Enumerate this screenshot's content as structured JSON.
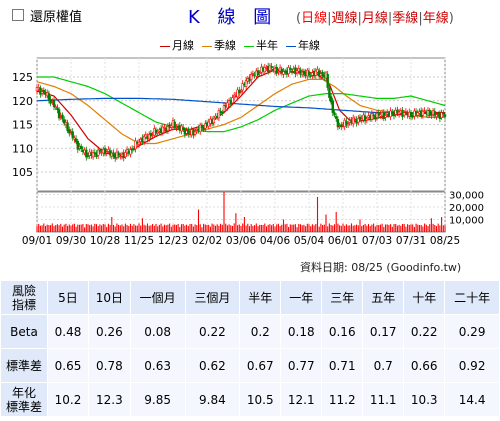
{
  "toolbar": {
    "restore_label": "還原權值",
    "checkbox_checked": false
  },
  "title": "K 線 圖",
  "periods": {
    "open": "(",
    "close": ")",
    "items": [
      "日線",
      "週線",
      "月線",
      "季線",
      "年線"
    ],
    "selected": "日線",
    "separator": "|"
  },
  "source_note": "資料日期: 08/25 (Goodinfo.tw)",
  "colors": {
    "bg": "#ffffff",
    "title": "#0000cc",
    "period_link": "#cc0000",
    "candle_up": "#ff0000",
    "candle_down": "#008000",
    "volume": "#ff0000",
    "table_header": "#dfe9f9",
    "table_cell": "#f4f7fd"
  },
  "chart_data": {
    "type": "candlestick",
    "legend": [
      {
        "name": "月線",
        "color": "#d00000"
      },
      {
        "name": "季線",
        "color": "#e08000"
      },
      {
        "name": "半年",
        "color": "#00cc00"
      },
      {
        "name": "年線",
        "color": "#0050c8"
      }
    ],
    "x_ticks": [
      "09/01",
      "09/30",
      "10/28",
      "11/25",
      "12/23",
      "02/02",
      "03/06",
      "04/06",
      "05/04",
      "06/01",
      "07/03",
      "07/31",
      "08/25"
    ],
    "y_ticks": [
      105,
      110,
      115,
      120,
      125
    ],
    "y_range": [
      101,
      129
    ],
    "volume_ticks": [
      "10,000",
      "20,000",
      "30,000"
    ],
    "volume_range": [
      0,
      32000
    ],
    "x_range": [
      0,
      240
    ],
    "anchors": {
      "close": [
        [
          0,
          122.5
        ],
        [
          5,
          121.5
        ],
        [
          10,
          119
        ],
        [
          15,
          116
        ],
        [
          20,
          113
        ],
        [
          25,
          110
        ],
        [
          30,
          108.5
        ],
        [
          35,
          109
        ],
        [
          40,
          109.5
        ],
        [
          45,
          108.5
        ],
        [
          50,
          108.5
        ],
        [
          55,
          109.5
        ],
        [
          60,
          111.5
        ],
        [
          65,
          112.5
        ],
        [
          70,
          113.5
        ],
        [
          75,
          114
        ],
        [
          80,
          115
        ],
        [
          85,
          114
        ],
        [
          90,
          113
        ],
        [
          95,
          114
        ],
        [
          100,
          115
        ],
        [
          105,
          116.5
        ],
        [
          110,
          118.5
        ],
        [
          115,
          120.5
        ],
        [
          120,
          122.5
        ],
        [
          125,
          125
        ],
        [
          130,
          126
        ],
        [
          135,
          127
        ],
        [
          140,
          126.5
        ],
        [
          145,
          126
        ],
        [
          150,
          126.5
        ],
        [
          155,
          126
        ],
        [
          160,
          125.5
        ],
        [
          165,
          126
        ],
        [
          170,
          125
        ],
        [
          172,
          121
        ],
        [
          175,
          116.5
        ],
        [
          178,
          114.5
        ],
        [
          183,
          115.5
        ],
        [
          188,
          116
        ],
        [
          195,
          116.5
        ],
        [
          200,
          117
        ],
        [
          205,
          117
        ],
        [
          210,
          117.5
        ],
        [
          215,
          117.5
        ],
        [
          220,
          117
        ],
        [
          225,
          117.5
        ],
        [
          230,
          117.5
        ],
        [
          235,
          117
        ],
        [
          240,
          117
        ]
      ],
      "ma_month": [
        [
          0,
          122
        ],
        [
          10,
          121
        ],
        [
          20,
          117
        ],
        [
          30,
          112
        ],
        [
          40,
          109
        ],
        [
          50,
          108.5
        ],
        [
          60,
          110.5
        ],
        [
          70,
          112.5
        ],
        [
          80,
          114
        ],
        [
          90,
          114
        ],
        [
          100,
          115
        ],
        [
          110,
          117.5
        ],
        [
          120,
          121
        ],
        [
          130,
          125
        ],
        [
          140,
          126.5
        ],
        [
          150,
          126
        ],
        [
          160,
          126
        ],
        [
          165,
          125.5
        ],
        [
          172,
          123.5
        ],
        [
          178,
          118
        ],
        [
          185,
          115.5
        ],
        [
          195,
          116
        ],
        [
          210,
          117
        ],
        [
          225,
          117.5
        ],
        [
          240,
          117.5
        ]
      ],
      "ma_quarter": [
        [
          0,
          124
        ],
        [
          10,
          123
        ],
        [
          20,
          121.5
        ],
        [
          30,
          119
        ],
        [
          40,
          116
        ],
        [
          50,
          113
        ],
        [
          60,
          111
        ],
        [
          70,
          111
        ],
        [
          80,
          112
        ],
        [
          90,
          113
        ],
        [
          100,
          114
        ],
        [
          110,
          115
        ],
        [
          120,
          116.5
        ],
        [
          130,
          119
        ],
        [
          140,
          121.5
        ],
        [
          150,
          123.5
        ],
        [
          160,
          124.5
        ],
        [
          168,
          124.5
        ],
        [
          175,
          123
        ],
        [
          182,
          121
        ],
        [
          190,
          119
        ],
        [
          200,
          118
        ],
        [
          210,
          117.5
        ],
        [
          220,
          117
        ],
        [
          230,
          116.5
        ],
        [
          240,
          116.5
        ]
      ],
      "ma_half": [
        [
          0,
          125
        ],
        [
          10,
          125
        ],
        [
          20,
          124
        ],
        [
          30,
          123
        ],
        [
          40,
          121.5
        ],
        [
          50,
          119.5
        ],
        [
          60,
          117.5
        ],
        [
          70,
          115.5
        ],
        [
          80,
          114.5
        ],
        [
          90,
          114
        ],
        [
          100,
          113.5
        ],
        [
          110,
          113.5
        ],
        [
          120,
          114.5
        ],
        [
          130,
          116
        ],
        [
          140,
          118
        ],
        [
          150,
          119.5
        ],
        [
          160,
          121
        ],
        [
          170,
          121.5
        ],
        [
          180,
          121.5
        ],
        [
          190,
          121
        ],
        [
          200,
          120.5
        ],
        [
          210,
          120.5
        ],
        [
          220,
          121
        ],
        [
          230,
          120
        ],
        [
          240,
          119
        ]
      ],
      "ma_year": [
        [
          0,
          120
        ],
        [
          20,
          120.3
        ],
        [
          40,
          120.5
        ],
        [
          60,
          120.5
        ],
        [
          80,
          120.3
        ],
        [
          100,
          119.8
        ],
        [
          120,
          119.3
        ],
        [
          140,
          118.8
        ],
        [
          160,
          118.5
        ],
        [
          180,
          118
        ],
        [
          200,
          117.5
        ],
        [
          220,
          117.4
        ],
        [
          240,
          117.3
        ]
      ]
    },
    "volume_peaks": [
      [
        44,
        12000
      ],
      [
        62,
        11000
      ],
      [
        95,
        18000
      ],
      [
        110,
        32000
      ],
      [
        117,
        15000
      ],
      [
        122,
        12000
      ],
      [
        145,
        10000
      ],
      [
        165,
        28000
      ],
      [
        170,
        14000
      ],
      [
        176,
        16000
      ],
      [
        190,
        10000
      ],
      [
        232,
        11000
      ],
      [
        238,
        12000
      ]
    ]
  },
  "stats_table": {
    "row_header_label": [
      "風險",
      "指標"
    ],
    "columns": [
      "5日",
      "10日",
      "一個月",
      "三個月",
      "半年",
      "一年",
      "三年",
      "五年",
      "十年",
      "二十年"
    ],
    "rows": [
      {
        "label": [
          "Beta"
        ],
        "values": [
          "0.48",
          "0.26",
          "0.08",
          "0.22",
          "0.2",
          "0.18",
          "0.16",
          "0.17",
          "0.22",
          "0.29"
        ]
      },
      {
        "label": [
          "標準差"
        ],
        "values": [
          "0.65",
          "0.78",
          "0.63",
          "0.62",
          "0.67",
          "0.77",
          "0.71",
          "0.7",
          "0.66",
          "0.92"
        ]
      },
      {
        "label": [
          "年化",
          "標準差"
        ],
        "values": [
          "10.2",
          "12.3",
          "9.85",
          "9.84",
          "10.5",
          "12.1",
          "11.2",
          "11.1",
          "10.3",
          "14.4"
        ]
      }
    ]
  }
}
